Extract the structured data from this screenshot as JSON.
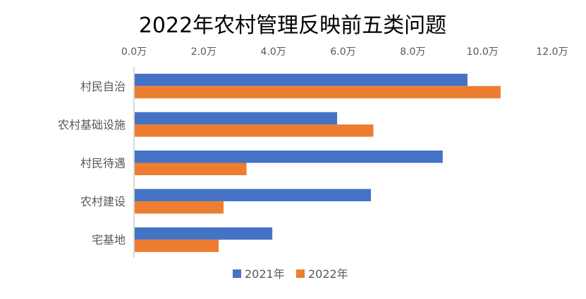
{
  "chart_data": {
    "type": "bar",
    "orientation": "horizontal",
    "title": "2022年农村管理反映前五类问题",
    "categories": [
      "村民自治",
      "农村基础设施",
      "村民待遇",
      "农村建设",
      "宅基地"
    ],
    "series": [
      {
        "name": "2021年",
        "color": "#4472C4",
        "values": [
          9.57,
          5.83,
          8.86,
          6.8,
          3.97
        ]
      },
      {
        "name": "2022年",
        "color": "#ED7D31",
        "values": [
          10.52,
          6.87,
          3.23,
          2.57,
          2.43
        ]
      }
    ],
    "xlim": [
      0,
      12
    ],
    "xticks": [
      "0.0万",
      "2.0万",
      "4.0万",
      "6.0万",
      "8.0万",
      "10.0万",
      "12.0万"
    ],
    "xtick_values": [
      0,
      2,
      4,
      6,
      8,
      10,
      12
    ],
    "xaxis_position": "top",
    "grid": false,
    "legend_position": "bottom",
    "xlabel": "",
    "ylabel": ""
  }
}
